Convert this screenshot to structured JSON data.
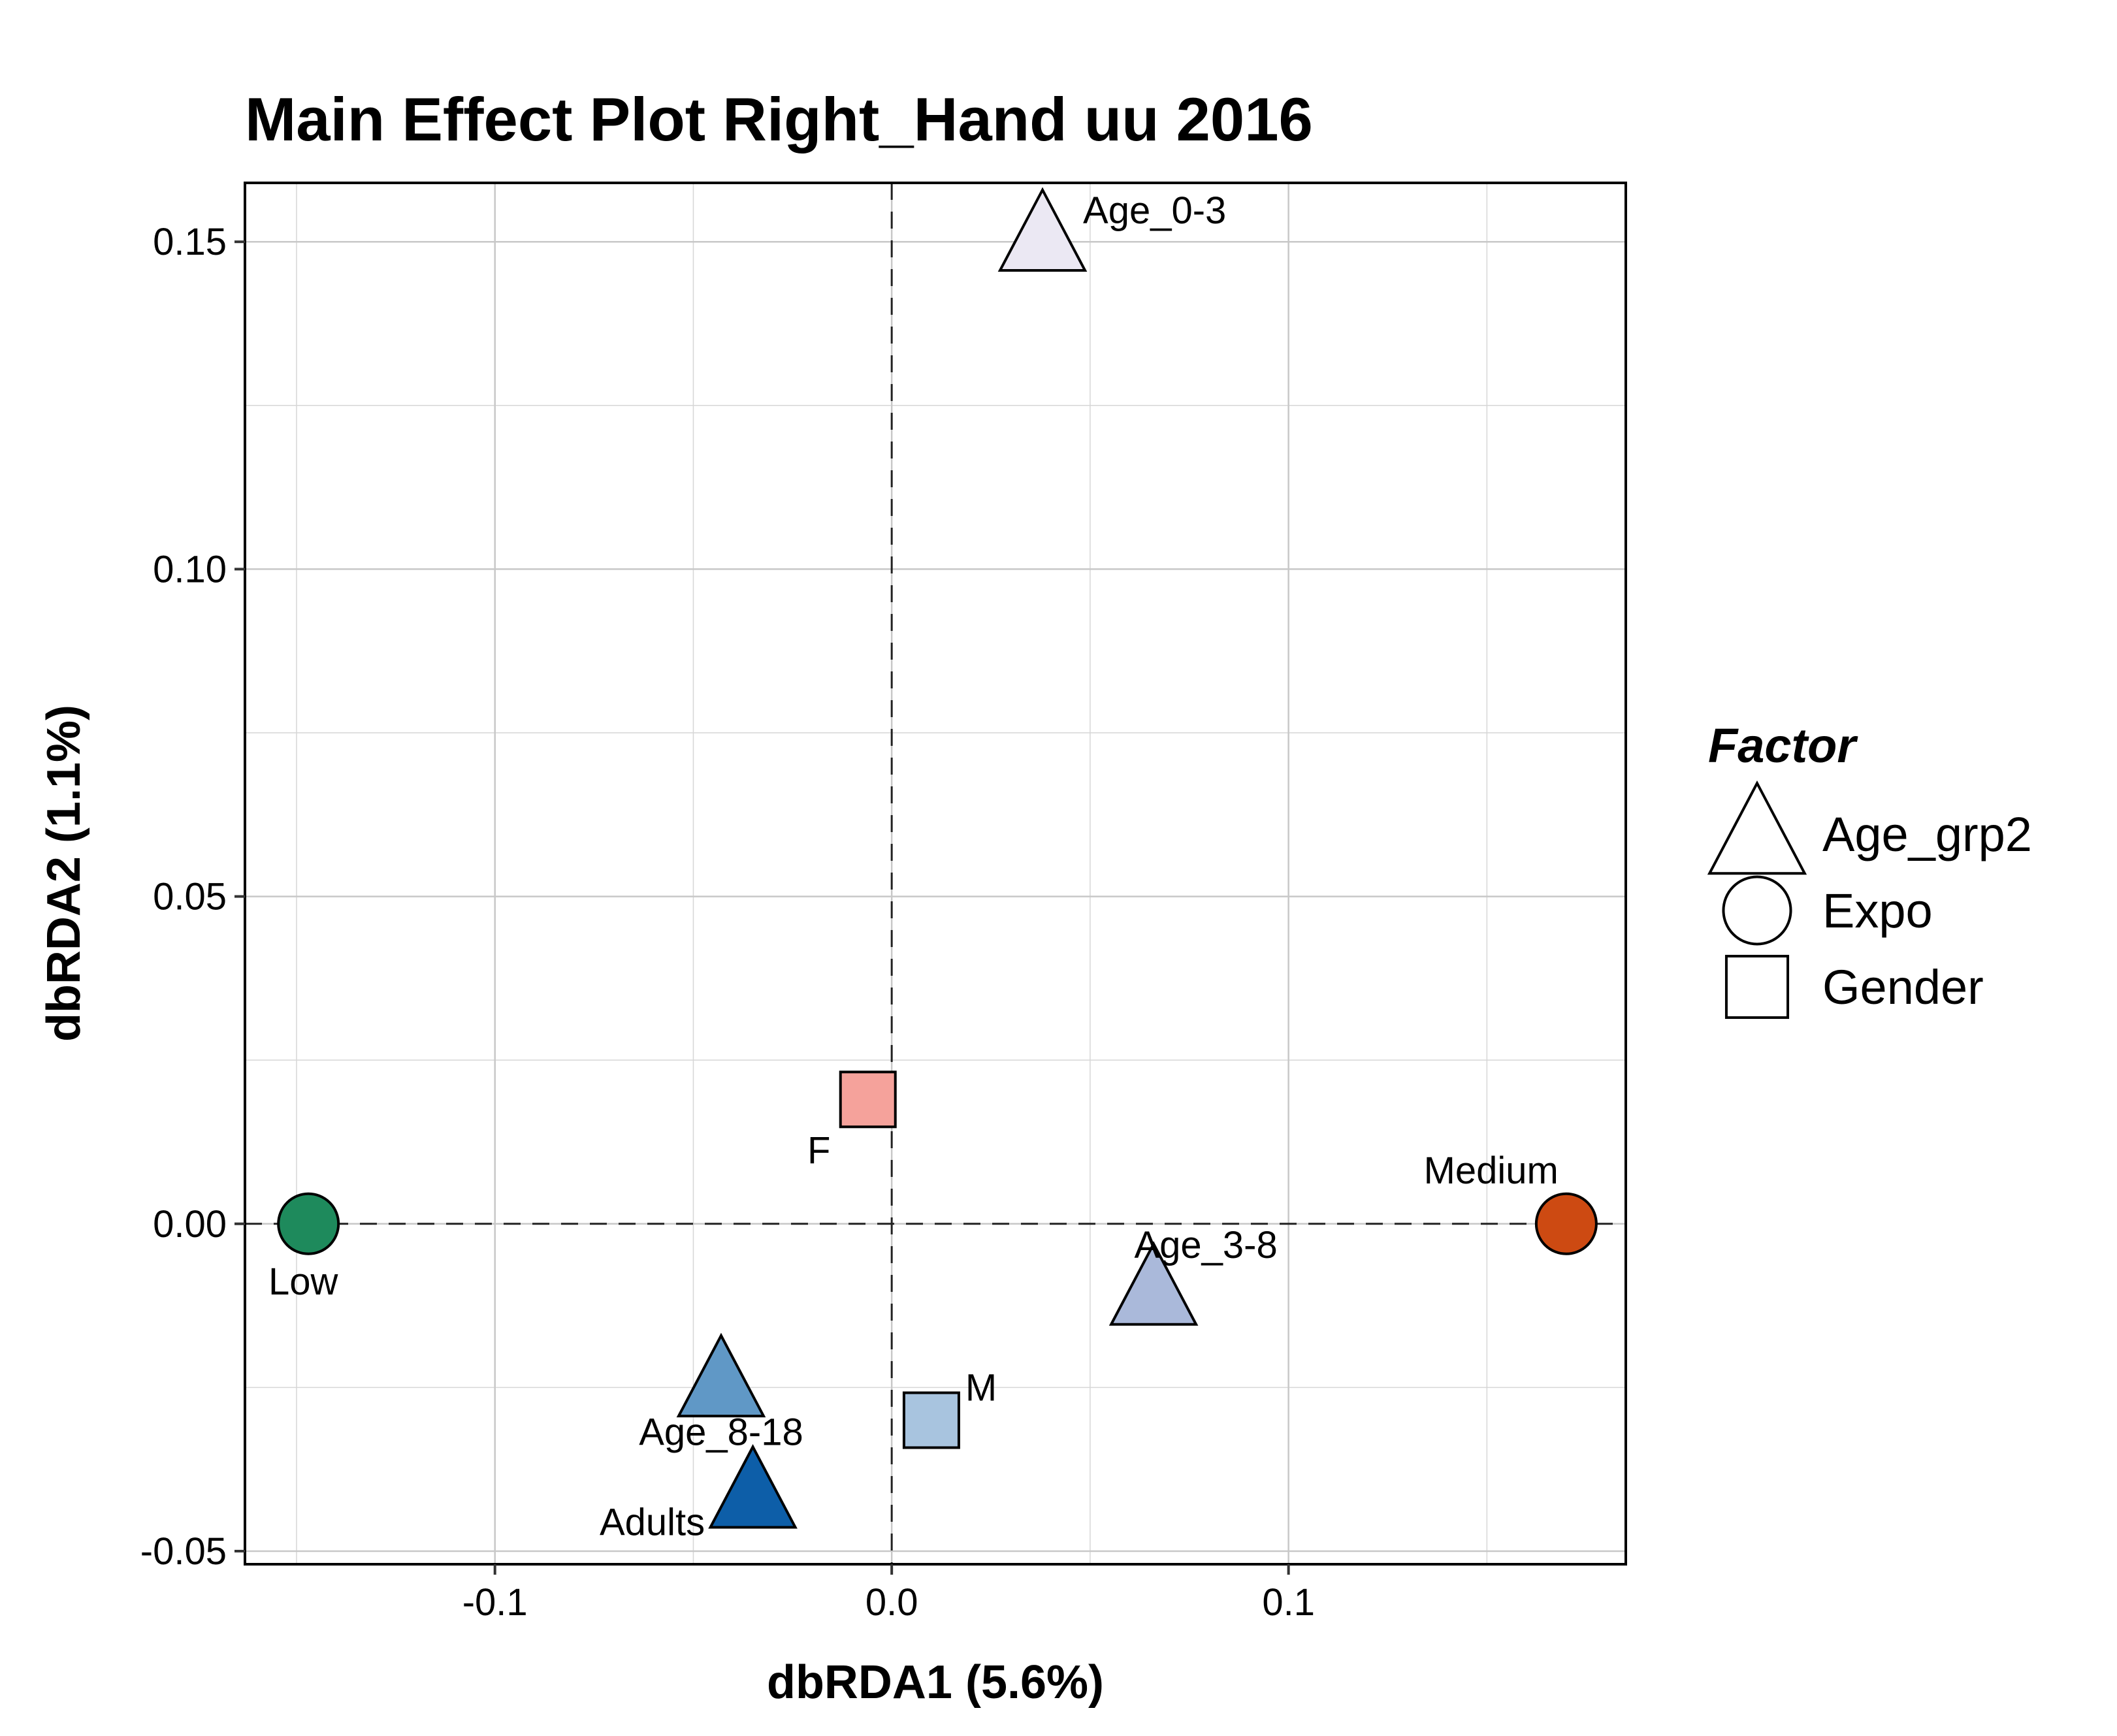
{
  "chart_data": {
    "type": "scatter",
    "title": "Main Effect Plot Right_Hand uu 2016",
    "xlabel": "dbRDA1 (5.6%)",
    "ylabel": "dbRDA2 (1.1%)",
    "xlim": [
      -0.163,
      0.185
    ],
    "ylim": [
      -0.052,
      0.159
    ],
    "x_ticks": [
      -0.1,
      0.0,
      0.1
    ],
    "x_tick_labels": [
      "-0.1",
      "0.0",
      "0.1"
    ],
    "y_ticks": [
      -0.05,
      0.0,
      0.05,
      0.1,
      0.15
    ],
    "y_tick_labels": [
      "-0.05",
      "0.00",
      "0.05",
      "0.10",
      "0.15"
    ],
    "grid": true,
    "reference_lines": {
      "x": 0,
      "y": 0,
      "style": "dashed"
    },
    "legend": {
      "title": "Factor",
      "position": "right",
      "entries": [
        {
          "label": "Age_grp2",
          "shape": "triangle"
        },
        {
          "label": "Expo",
          "shape": "circle"
        },
        {
          "label": "Gender",
          "shape": "square"
        }
      ]
    },
    "points": [
      {
        "label": "Age_0-3",
        "factor": "Age_grp2",
        "shape": "triangle",
        "x": 0.038,
        "y": 0.151,
        "color": "#ebe8f3",
        "label_pos": "right"
      },
      {
        "label": "Age_3-8",
        "factor": "Age_grp2",
        "shape": "triangle",
        "x": 0.066,
        "y": -0.01,
        "color": "#aab9da",
        "label_pos": "top"
      },
      {
        "label": "Age_8-18",
        "factor": "Age_grp2",
        "shape": "triangle",
        "x": -0.043,
        "y": -0.024,
        "color": "#6098c6",
        "label_pos": "bottom-left"
      },
      {
        "label": "Adults",
        "factor": "Age_grp2",
        "shape": "triangle",
        "x": -0.035,
        "y": -0.041,
        "color": "#0d5ea8",
        "label_pos": "bottom-left"
      },
      {
        "label": "Low",
        "factor": "Expo",
        "shape": "circle",
        "x": -0.147,
        "y": 0.0,
        "color": "#1e8a5c",
        "label_pos": "bottom"
      },
      {
        "label": "Medium",
        "factor": "Expo",
        "shape": "circle",
        "x": 0.17,
        "y": 0.0,
        "color": "#cd4a12",
        "label_pos": "top-left"
      },
      {
        "label": "F",
        "factor": "Gender",
        "shape": "square",
        "x": -0.006,
        "y": 0.019,
        "color": "#f5a29b",
        "label_pos": "bottom-left"
      },
      {
        "label": "M",
        "factor": "Gender",
        "shape": "square",
        "x": 0.01,
        "y": -0.03,
        "color": "#a8c4df",
        "label_pos": "top-right"
      }
    ]
  }
}
